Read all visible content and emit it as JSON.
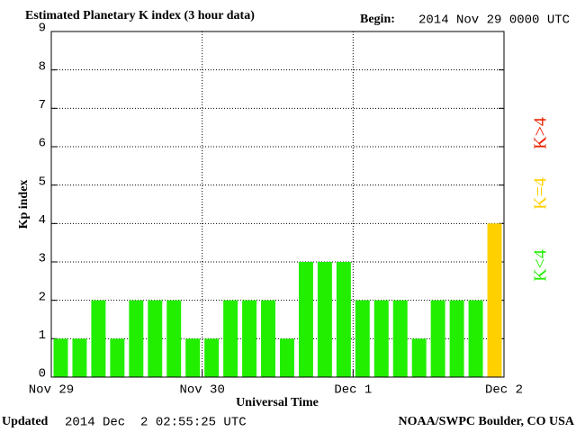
{
  "chart_data": {
    "type": "bar",
    "title": "Estimated Planetary K index (3 hour data)",
    "begin_label": "Begin:",
    "begin": "2014 Nov 29 0000 UTC",
    "ylabel": "Kp index",
    "xlabel": "Universal Time",
    "updated_label": "Updated",
    "updated": "2014 Dec  2 02:55:25 UTC",
    "source": "NOAA/SWPC Boulder, CO USA",
    "x": [
      0,
      3,
      6,
      9,
      12,
      15,
      18,
      21,
      24,
      27,
      30,
      33,
      36,
      39,
      42,
      45,
      48,
      51,
      54,
      57,
      60,
      63,
      66,
      69
    ],
    "bar_width": 3,
    "values": [
      1,
      1,
      2,
      1,
      2,
      2,
      2,
      1,
      1,
      2,
      2,
      2,
      1,
      3,
      3,
      3,
      2,
      2,
      2,
      1,
      2,
      2,
      2,
      4
    ],
    "colors": [
      "#22ee00",
      "#22ee00",
      "#22ee00",
      "#22ee00",
      "#22ee00",
      "#22ee00",
      "#22ee00",
      "#22ee00",
      "#22ee00",
      "#22ee00",
      "#22ee00",
      "#22ee00",
      "#22ee00",
      "#22ee00",
      "#22ee00",
      "#22ee00",
      "#22ee00",
      "#22ee00",
      "#22ee00",
      "#22ee00",
      "#22ee00",
      "#22ee00",
      "#22ee00",
      "#ffd000"
    ],
    "xlim": [
      0,
      72
    ],
    "xticks": [
      {
        "value": 0,
        "label": "Nov 29"
      },
      {
        "value": 24,
        "label": "Nov 30"
      },
      {
        "value": 48,
        "label": "Dec 1"
      },
      {
        "value": 72,
        "label": "Dec 2"
      }
    ],
    "ylim": [
      0,
      9
    ],
    "yticks": [
      0,
      1,
      2,
      3,
      4,
      5,
      6,
      7,
      8,
      9
    ],
    "grid": true,
    "legend": [
      {
        "label": "K<4",
        "color": "#22ee00"
      },
      {
        "label": "K=4",
        "color": "#ffd000"
      },
      {
        "label": "K>4",
        "color": "#ee2200"
      }
    ]
  }
}
